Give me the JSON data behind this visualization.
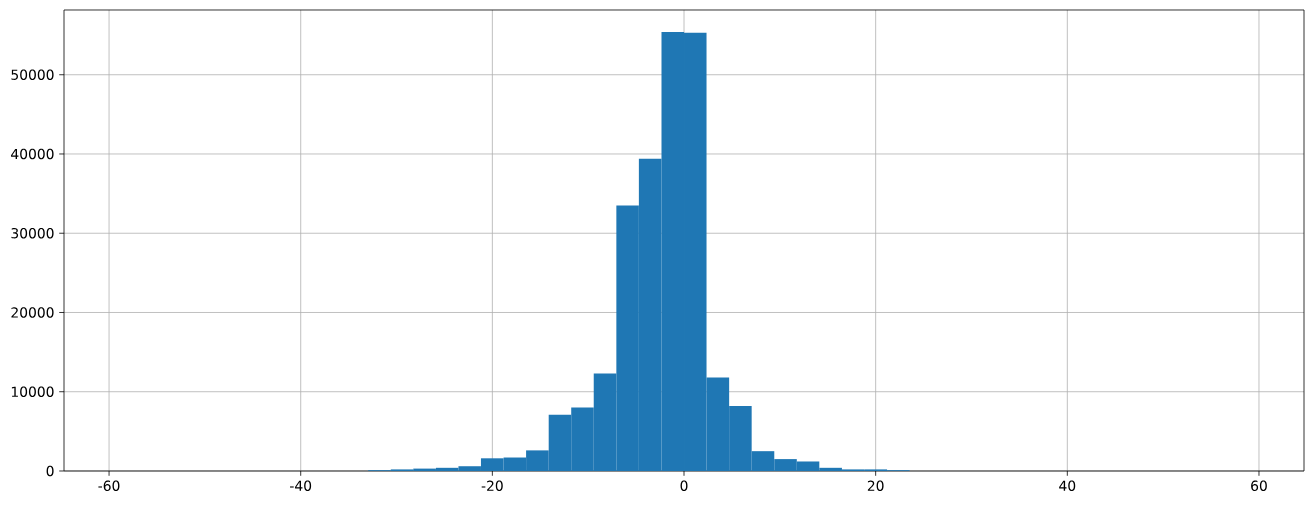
{
  "chart_data": {
    "type": "histogram",
    "bins": [
      -58.85,
      -56.5,
      -54.14,
      -51.79,
      -49.43,
      -47.08,
      -44.73,
      -42.37,
      -40.02,
      -37.66,
      -35.31,
      -32.96,
      -30.6,
      -28.25,
      -25.89,
      -23.54,
      -21.19,
      -18.83,
      -16.48,
      -14.12,
      -11.77,
      -9.42,
      -7.06,
      -4.71,
      -2.35,
      0,
      2.35,
      4.71,
      7.06,
      9.42,
      11.77,
      14.12,
      16.48,
      18.83,
      21.19,
      23.54,
      25.89,
      28.25,
      30.6,
      32.96,
      35.31,
      37.66,
      40.02,
      42.37,
      44.73,
      47.08,
      49.43,
      51.79,
      54.14,
      56.5,
      58.85
    ],
    "values": [
      0,
      0,
      0,
      0,
      0,
      0,
      0,
      0,
      0,
      0,
      0,
      100,
      200,
      300,
      400,
      600,
      1600,
      1700,
      2600,
      7100,
      8000,
      12300,
      33500,
      39400,
      55400,
      55300,
      11800,
      8200,
      2500,
      1500,
      1200,
      400,
      200,
      200,
      100,
      0,
      0,
      0,
      0,
      0,
      0,
      0,
      0,
      0,
      0,
      0,
      0,
      0,
      0,
      0
    ],
    "color": "#1f77b4",
    "xlim": [
      -64.7,
      64.7
    ],
    "ylim": [
      0,
      58170
    ],
    "xticks": [
      -60,
      -40,
      -20,
      0,
      20,
      40,
      60
    ],
    "yticks": [
      0,
      10000,
      20000,
      30000,
      40000,
      50000
    ],
    "grid": true
  }
}
